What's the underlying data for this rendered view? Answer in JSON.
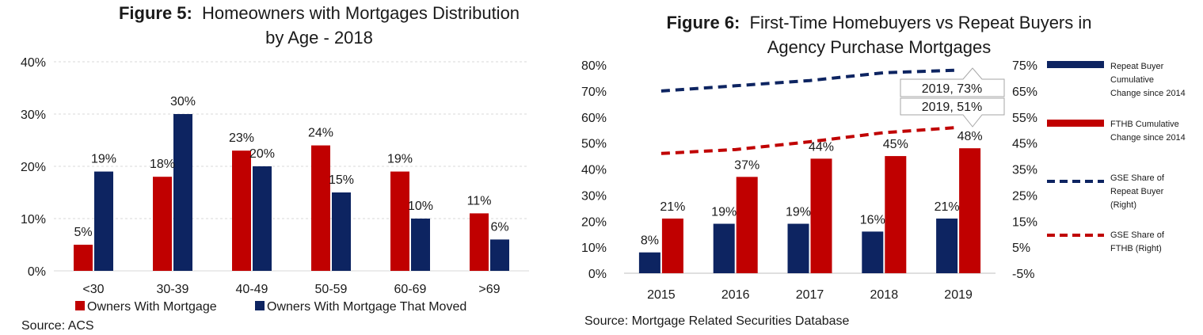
{
  "chart_data": [
    {
      "type": "bar",
      "title_prefix": "Figure 5:",
      "title_line1": "Homeowners with Mortgages Distribution",
      "title_line2": "by Age - 2018",
      "categories": [
        "<30",
        "30-39",
        "40-49",
        "50-59",
        "60-69",
        ">69"
      ],
      "series": [
        {
          "name": "Owners With Mortgage",
          "color": "#c00000",
          "values": [
            5,
            18,
            23,
            24,
            19,
            11
          ]
        },
        {
          "name": "Owners With Mortgage That Moved",
          "color": "#0d2461",
          "values": [
            19,
            30,
            20,
            15,
            10,
            6
          ]
        }
      ],
      "data_labels": [
        [
          "5%",
          "18%",
          "23%",
          "24%",
          "19%",
          "11%"
        ],
        [
          "19%",
          "30%",
          "20%",
          "15%",
          "10%",
          "6%"
        ]
      ],
      "yticks": [
        "0%",
        "10%",
        "20%",
        "30%",
        "40%"
      ],
      "ylim": [
        0,
        40
      ],
      "grid": true,
      "legend_position": "bottom",
      "source": "Source: ACS"
    },
    {
      "type": "bar",
      "title_prefix": "Figure 6:",
      "title_line1": "First-Time Homebuyers vs Repeat Buyers in",
      "title_line2": "Agency Purchase Mortgages",
      "categories": [
        "2015",
        "2016",
        "2017",
        "2018",
        "2019"
      ],
      "bar_series": [
        {
          "name_lines": [
            "Repeat Buyer",
            "Cumulative",
            "Change since 2014"
          ],
          "color": "#0d2461",
          "values": [
            8,
            19,
            19,
            16,
            21
          ],
          "labels": [
            "8%",
            "19%",
            "19%",
            "16%",
            "21%"
          ]
        },
        {
          "name_lines": [
            "FTHB Cumulative",
            "Change since 2014"
          ],
          "color": "#c00000",
          "values": [
            21,
            37,
            44,
            45,
            48
          ],
          "labels": [
            "21%",
            "37%",
            "44%",
            "45%",
            "48%"
          ]
        }
      ],
      "line_series": [
        {
          "name_lines": [
            "GSE Share of",
            "Repeat Buyer",
            "(Right)"
          ],
          "color": "#0d2461",
          "axis": "right",
          "values": [
            65,
            67,
            69,
            72,
            73
          ]
        },
        {
          "name_lines": [
            "GSE Share of",
            "FTHB (Right)"
          ],
          "color": "#c00000",
          "axis": "right",
          "values": [
            41,
            42.5,
            45.5,
            49,
            51
          ]
        }
      ],
      "callouts": [
        "2019, 73%",
        "2019, 51%"
      ],
      "yticks_left": [
        "0%",
        "10%",
        "20%",
        "30%",
        "40%",
        "50%",
        "60%",
        "70%",
        "80%"
      ],
      "ylim_left": [
        0,
        80
      ],
      "yticks_right": [
        "-5%",
        "5%",
        "15%",
        "25%",
        "35%",
        "45%",
        "55%",
        "65%",
        "75%"
      ],
      "ylim_right": [
        -5,
        75
      ],
      "grid": false,
      "legend_position": "right",
      "source": "Source: Mortgage Related Securities Database"
    }
  ]
}
